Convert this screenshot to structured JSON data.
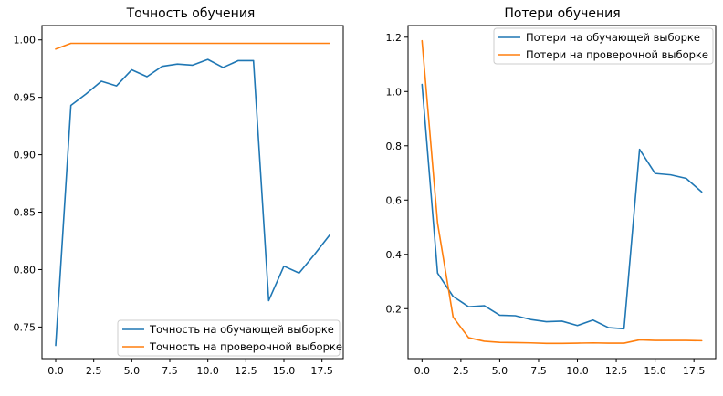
{
  "chart_data": [
    {
      "type": "line",
      "title": "Точность обучения",
      "xlabel": "",
      "ylabel": "",
      "xlim": [
        -0.9,
        18.9
      ],
      "ylim": [
        0.7225,
        1.0125
      ],
      "xticks": [
        0.0,
        2.5,
        5.0,
        7.5,
        10.0,
        12.5,
        15.0,
        17.5
      ],
      "xtick_labels": [
        "0.0",
        "2.5",
        "5.0",
        "7.5",
        "10.0",
        "12.5",
        "15.0",
        "17.5"
      ],
      "yticks": [
        0.75,
        0.8,
        0.85,
        0.9,
        0.95,
        1.0
      ],
      "ytick_labels": [
        "0.75",
        "0.80",
        "0.85",
        "0.90",
        "0.95",
        "1.00"
      ],
      "legend_position": "lower-right",
      "x": [
        0,
        1,
        2,
        3,
        4,
        5,
        6,
        7,
        8,
        9,
        10,
        11,
        12,
        13,
        14,
        15,
        16,
        17,
        18
      ],
      "series": [
        {
          "name": "Точность на обучающей выборке",
          "color": "#1f77b4",
          "values": [
            0.734,
            0.943,
            0.953,
            0.964,
            0.96,
            0.974,
            0.968,
            0.977,
            0.979,
            0.978,
            0.983,
            0.976,
            0.982,
            0.982,
            0.773,
            0.803,
            0.797,
            0.813,
            0.83
          ]
        },
        {
          "name": "Точность на проверочной выборке",
          "color": "#ff7f0e",
          "values": [
            0.992,
            0.997,
            0.997,
            0.997,
            0.997,
            0.997,
            0.997,
            0.997,
            0.997,
            0.997,
            0.997,
            0.997,
            0.997,
            0.997,
            0.997,
            0.997,
            0.997,
            0.997,
            0.997
          ]
        }
      ]
    },
    {
      "type": "line",
      "title": "Потери обучения",
      "xlabel": "",
      "ylabel": "",
      "xlim": [
        -0.9,
        18.9
      ],
      "ylim": [
        0.016,
        1.243
      ],
      "xticks": [
        0.0,
        2.5,
        5.0,
        7.5,
        10.0,
        12.5,
        15.0,
        17.5
      ],
      "xtick_labels": [
        "0.0",
        "2.5",
        "5.0",
        "7.5",
        "10.0",
        "12.5",
        "15.0",
        "17.5"
      ],
      "yticks": [
        0.2,
        0.4,
        0.6,
        0.8,
        1.0,
        1.2
      ],
      "ytick_labels": [
        "0.2",
        "0.4",
        "0.6",
        "0.8",
        "1.0",
        "1.2"
      ],
      "legend_position": "upper-right",
      "x": [
        0,
        1,
        2,
        3,
        4,
        5,
        6,
        7,
        8,
        9,
        10,
        11,
        12,
        13,
        14,
        15,
        16,
        17,
        18
      ],
      "series": [
        {
          "name": "Потери на обучающей выборке",
          "color": "#1f77b4",
          "values": [
            1.026,
            0.331,
            0.245,
            0.207,
            0.211,
            0.176,
            0.174,
            0.16,
            0.152,
            0.154,
            0.138,
            0.158,
            0.13,
            0.126,
            0.787,
            0.698,
            0.693,
            0.68,
            0.63
          ]
        },
        {
          "name": "Потери на проверочной выборке",
          "color": "#ff7f0e",
          "values": [
            1.187,
            0.515,
            0.169,
            0.093,
            0.08,
            0.076,
            0.075,
            0.074,
            0.072,
            0.072,
            0.073,
            0.074,
            0.073,
            0.073,
            0.085,
            0.083,
            0.083,
            0.083,
            0.082
          ]
        }
      ]
    }
  ]
}
